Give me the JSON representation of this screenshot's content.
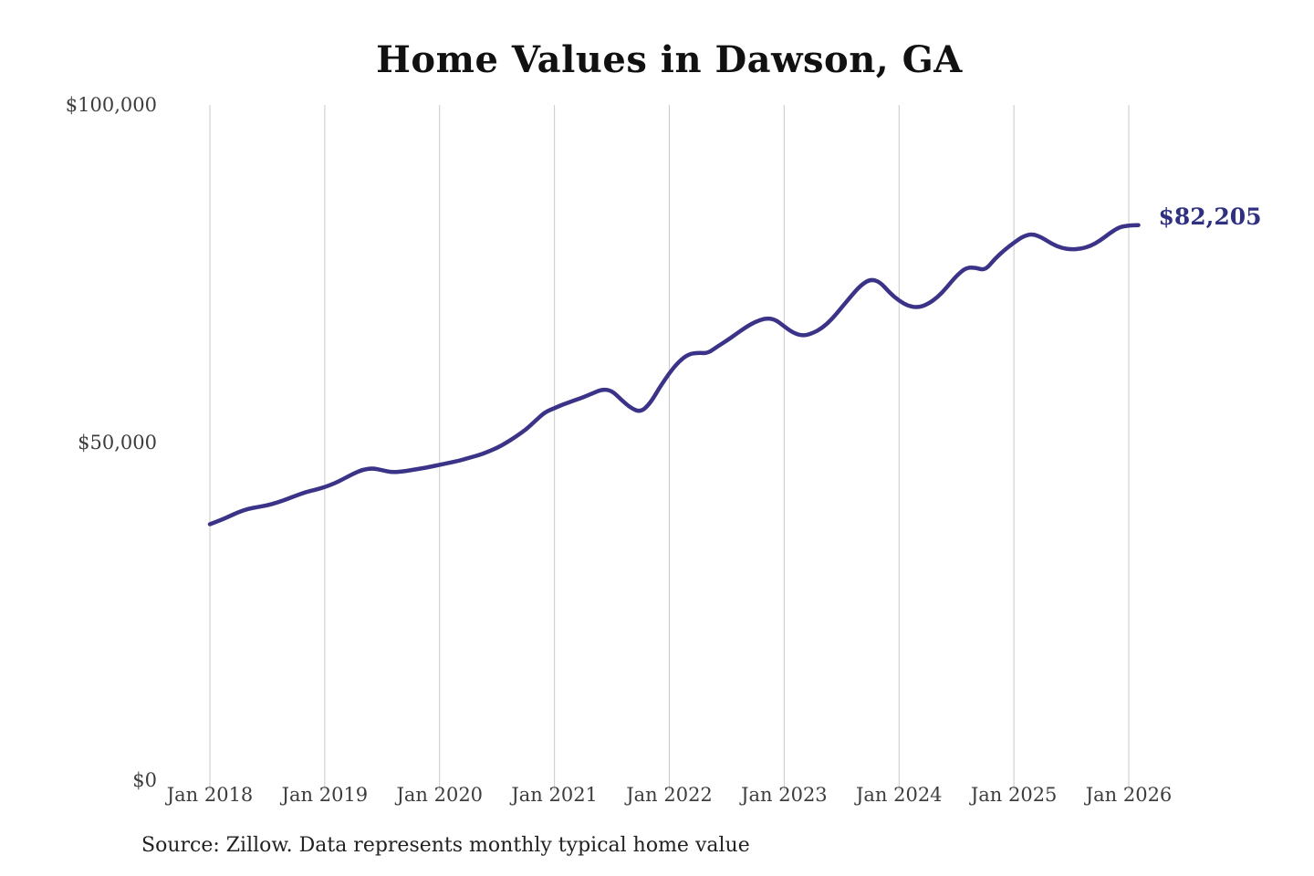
{
  "chart_data": {
    "type": "line",
    "title": "Home Values in Dawson, GA",
    "xlabel": "",
    "ylabel": "",
    "x_start": "Jan 2018",
    "x_end": "Feb 2026",
    "x_frequency": "monthly",
    "xtick_labels": [
      "Jan 2018",
      "Jan 2019",
      "Jan 2020",
      "Jan 2021",
      "Jan 2022",
      "Jan 2023",
      "Jan 2024",
      "Jan 2025",
      "Jan 2026"
    ],
    "ytick_labels": [
      "$0",
      "$50,000",
      "$100,000"
    ],
    "ytick_values": [
      0,
      50000,
      100000
    ],
    "ylim": [
      0,
      100000
    ],
    "grid": "vertical-only",
    "legend_position": "none",
    "end_label": "$82,205",
    "end_value": 82205,
    "series": [
      {
        "name": "Monthly typical home value",
        "values": [
          37900,
          38450,
          39050,
          39700,
          40200,
          40450,
          40700,
          41100,
          41600,
          42150,
          42650,
          43000,
          43400,
          43950,
          44650,
          45400,
          46000,
          46200,
          45900,
          45600,
          45700,
          45900,
          46150,
          46400,
          46700,
          47000,
          47300,
          47700,
          48100,
          48600,
          49200,
          50000,
          50900,
          51900,
          53200,
          54500,
          55100,
          55700,
          56200,
          56700,
          57300,
          57900,
          57700,
          56300,
          55100,
          54500,
          55800,
          58200,
          60300,
          62000,
          63100,
          63300,
          63200,
          64200,
          65100,
          66100,
          67100,
          67900,
          68400,
          68300,
          67200,
          66200,
          65800,
          66200,
          67000,
          68300,
          70000,
          71700,
          73300,
          74200,
          73800,
          72200,
          71000,
          70200,
          70000,
          70500,
          71500,
          73000,
          74700,
          75900,
          75900,
          75500,
          77200,
          78500,
          79600,
          80600,
          80900,
          80300,
          79400,
          78800,
          78600,
          78700,
          79100,
          79900,
          81000,
          81900,
          82150,
          82205
        ]
      }
    ]
  },
  "colors": {
    "line": "#3a3387",
    "end_label": "#2f3080",
    "grid": "#c9c9c9",
    "title": "#111111",
    "axis_text": "#3d3d3d",
    "source_text": "#222222",
    "background": "#ffffff"
  },
  "source_note": "Source: Zillow. Data represents monthly typical home value"
}
